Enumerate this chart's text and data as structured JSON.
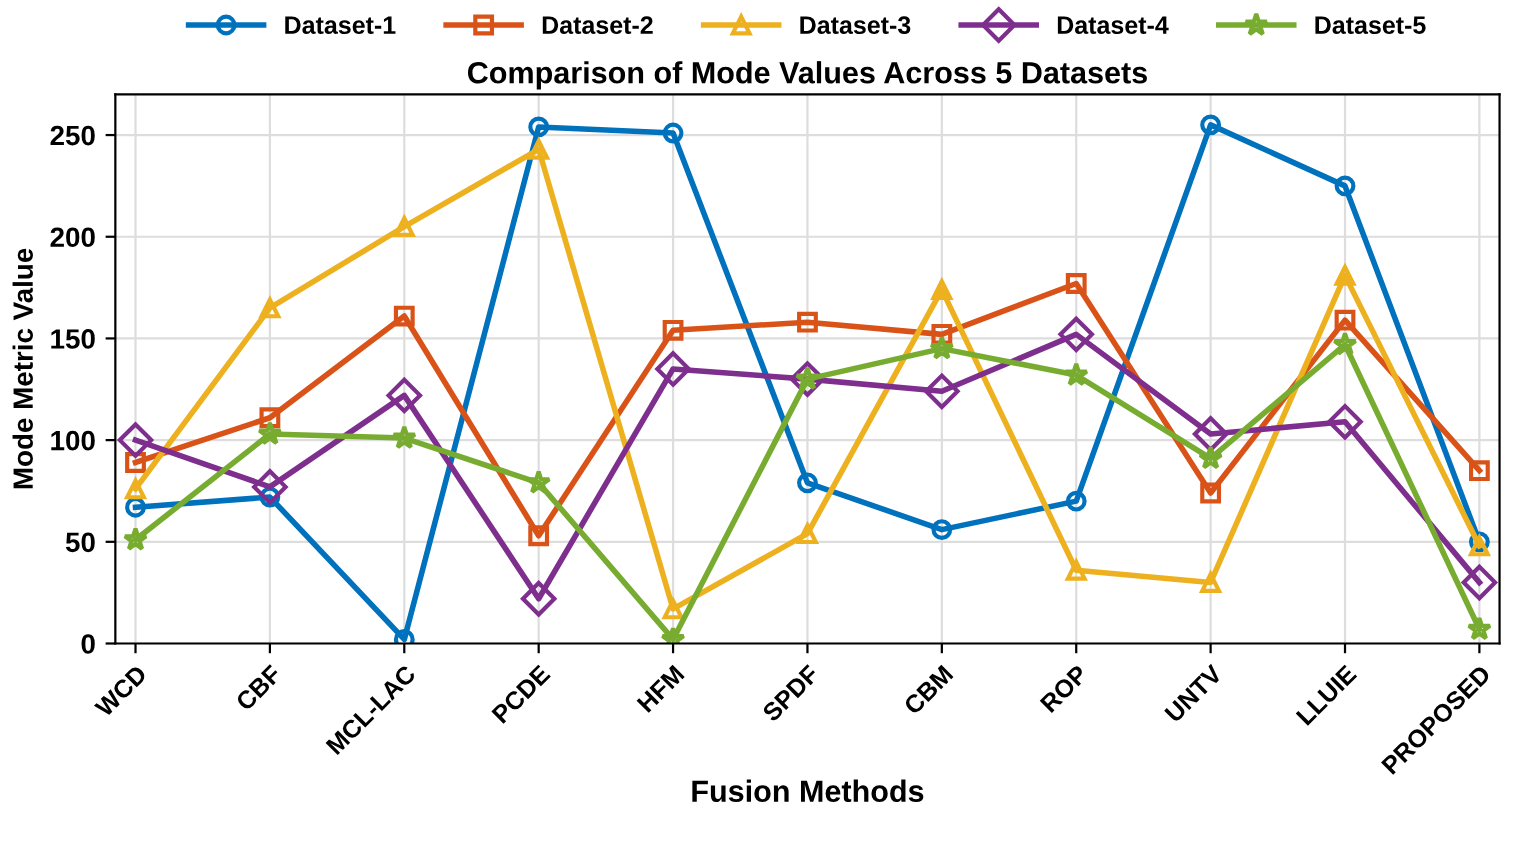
{
  "chart_data": {
    "type": "line",
    "title": "Comparison of Mode Values Across 5 Datasets",
    "xlabel": "Fusion Methods",
    "ylabel": "Mode Metric Value",
    "categories": [
      "WCD",
      "CBF",
      "MCL-LAC",
      "PCDE",
      "HFM",
      "SPDF",
      "CBM",
      "ROP",
      "UNTV",
      "LLUIE",
      "PROPOSED"
    ],
    "series": [
      {
        "name": "Dataset-1",
        "color": "#0072bd",
        "marker": "circle",
        "values": [
          67,
          72,
          2,
          254,
          251,
          79,
          56,
          70,
          255,
          225,
          50
        ]
      },
      {
        "name": "Dataset-2",
        "color": "#d95319",
        "marker": "square",
        "values": [
          89,
          111,
          161,
          53,
          154,
          158,
          152,
          177,
          74,
          159,
          85
        ]
      },
      {
        "name": "Dataset-3",
        "color": "#edb120",
        "marker": "triangle",
        "values": [
          76,
          165,
          205,
          243,
          17,
          54,
          174,
          36,
          30,
          181,
          48
        ]
      },
      {
        "name": "Dataset-4",
        "color": "#7e2f8e",
        "marker": "diamond",
        "values": [
          100,
          77,
          122,
          22,
          135,
          130,
          124,
          152,
          103,
          109,
          30
        ]
      },
      {
        "name": "Dataset-5",
        "color": "#77ac30",
        "marker": "star",
        "values": [
          51,
          103,
          101,
          79,
          2,
          130,
          145,
          132,
          91,
          147,
          7
        ]
      }
    ],
    "ylim": [
      0,
      270
    ],
    "yticks": [
      0,
      50,
      100,
      150,
      200,
      250
    ],
    "grid": true,
    "legend": "top",
    "line_style": "solid"
  }
}
